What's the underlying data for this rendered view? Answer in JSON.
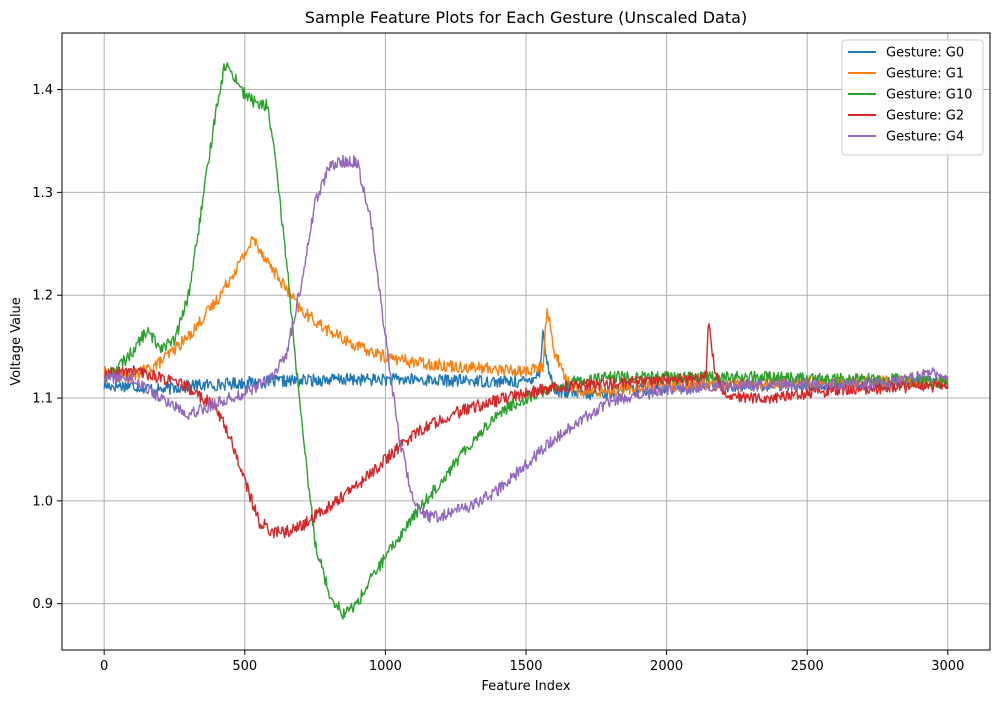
{
  "chart_data": {
    "type": "line",
    "title": "Sample Feature Plots for Each Gesture (Unscaled Data)",
    "xlabel": "Feature Index",
    "ylabel": "Voltage Value",
    "xlim": [
      -150,
      3150
    ],
    "ylim": [
      0.855,
      1.455
    ],
    "x_ticks": [
      0,
      500,
      1000,
      1500,
      2000,
      2500,
      3000
    ],
    "x_tick_labels": [
      "0",
      "500",
      "1000",
      "1500",
      "2000",
      "2500",
      "3000"
    ],
    "y_ticks": [
      0.9,
      1.0,
      1.1,
      1.2,
      1.3,
      1.4
    ],
    "y_tick_labels": [
      "0.9",
      "1.0",
      "1.1",
      "1.2",
      "1.3",
      "1.4"
    ],
    "grid": true,
    "legend_position": "top-right",
    "series": [
      {
        "name": "Gesture: G0",
        "color": "#1f77b4",
        "x": [
          0,
          100,
          200,
          300,
          400,
          500,
          600,
          700,
          800,
          900,
          1000,
          1100,
          1200,
          1300,
          1400,
          1500,
          1550,
          1560,
          1570,
          1600,
          1700,
          1800,
          1900,
          2000,
          2200,
          2400,
          2600,
          2800,
          3000
        ],
        "values": [
          1.112,
          1.112,
          1.108,
          1.112,
          1.113,
          1.115,
          1.116,
          1.117,
          1.118,
          1.118,
          1.118,
          1.118,
          1.117,
          1.117,
          1.116,
          1.116,
          1.125,
          1.17,
          1.14,
          1.108,
          1.103,
          1.105,
          1.108,
          1.11,
          1.112,
          1.113,
          1.113,
          1.114,
          1.115
        ]
      },
      {
        "name": "Gesture: G1",
        "color": "#ff7f0e",
        "x": [
          0,
          100,
          200,
          300,
          400,
          500,
          530,
          600,
          700,
          800,
          900,
          1000,
          1100,
          1200,
          1300,
          1400,
          1500,
          1560,
          1575,
          1600,
          1650,
          1700,
          1800,
          1900,
          2000,
          2200,
          2400,
          2600,
          2800,
          3000
        ],
        "values": [
          1.125,
          1.12,
          1.135,
          1.16,
          1.195,
          1.24,
          1.255,
          1.225,
          1.185,
          1.165,
          1.15,
          1.14,
          1.135,
          1.132,
          1.13,
          1.128,
          1.126,
          1.13,
          1.19,
          1.145,
          1.115,
          1.105,
          1.108,
          1.11,
          1.112,
          1.114,
          1.115,
          1.116,
          1.116,
          1.116
        ]
      },
      {
        "name": "Gesture: G10",
        "color": "#2ca02c",
        "x": [
          0,
          50,
          100,
          150,
          200,
          250,
          300,
          350,
          400,
          430,
          470,
          500,
          550,
          580,
          600,
          650,
          700,
          750,
          800,
          850,
          900,
          950,
          1000,
          1100,
          1200,
          1300,
          1400,
          1500,
          1600,
          1700,
          1800,
          1900,
          2000,
          2200,
          2400,
          2600,
          2800,
          3000
        ],
        "values": [
          1.12,
          1.13,
          1.145,
          1.165,
          1.15,
          1.155,
          1.2,
          1.29,
          1.385,
          1.425,
          1.41,
          1.395,
          1.385,
          1.385,
          1.35,
          1.23,
          1.08,
          0.96,
          0.91,
          0.89,
          0.9,
          0.925,
          0.945,
          0.985,
          1.02,
          1.055,
          1.085,
          1.1,
          1.11,
          1.118,
          1.12,
          1.12,
          1.12,
          1.12,
          1.12,
          1.118,
          1.118,
          1.115
        ]
      },
      {
        "name": "Gesture: G2",
        "color": "#d62728",
        "x": [
          0,
          100,
          200,
          300,
          350,
          400,
          450,
          500,
          550,
          600,
          650,
          700,
          800,
          900,
          1000,
          1100,
          1200,
          1300,
          1400,
          1500,
          1600,
          1700,
          1800,
          1900,
          2000,
          2100,
          2140,
          2150,
          2170,
          2200,
          2300,
          2400,
          2500,
          2600,
          2800,
          3000
        ],
        "values": [
          1.122,
          1.127,
          1.12,
          1.11,
          1.1,
          1.09,
          1.06,
          1.02,
          0.98,
          0.97,
          0.97,
          0.975,
          0.995,
          1.015,
          1.04,
          1.065,
          1.08,
          1.09,
          1.098,
          1.105,
          1.11,
          1.112,
          1.114,
          1.116,
          1.118,
          1.118,
          1.125,
          1.175,
          1.13,
          1.105,
          1.1,
          1.1,
          1.105,
          1.108,
          1.11,
          1.112
        ]
      },
      {
        "name": "Gesture: G4",
        "color": "#9467bd",
        "x": [
          0,
          100,
          200,
          300,
          400,
          500,
          600,
          650,
          700,
          750,
          800,
          850,
          900,
          950,
          1000,
          1050,
          1100,
          1150,
          1200,
          1300,
          1400,
          1500,
          1600,
          1700,
          1800,
          1900,
          2000,
          2200,
          2400,
          2600,
          2800,
          2950,
          3000
        ],
        "values": [
          1.12,
          1.12,
          1.1,
          1.085,
          1.095,
          1.105,
          1.12,
          1.145,
          1.21,
          1.29,
          1.325,
          1.33,
          1.33,
          1.27,
          1.16,
          1.06,
          1.0,
          0.985,
          0.985,
          0.995,
          1.01,
          1.035,
          1.06,
          1.08,
          1.095,
          1.103,
          1.108,
          1.112,
          1.113,
          1.113,
          1.115,
          1.125,
          1.12
        ]
      }
    ]
  }
}
